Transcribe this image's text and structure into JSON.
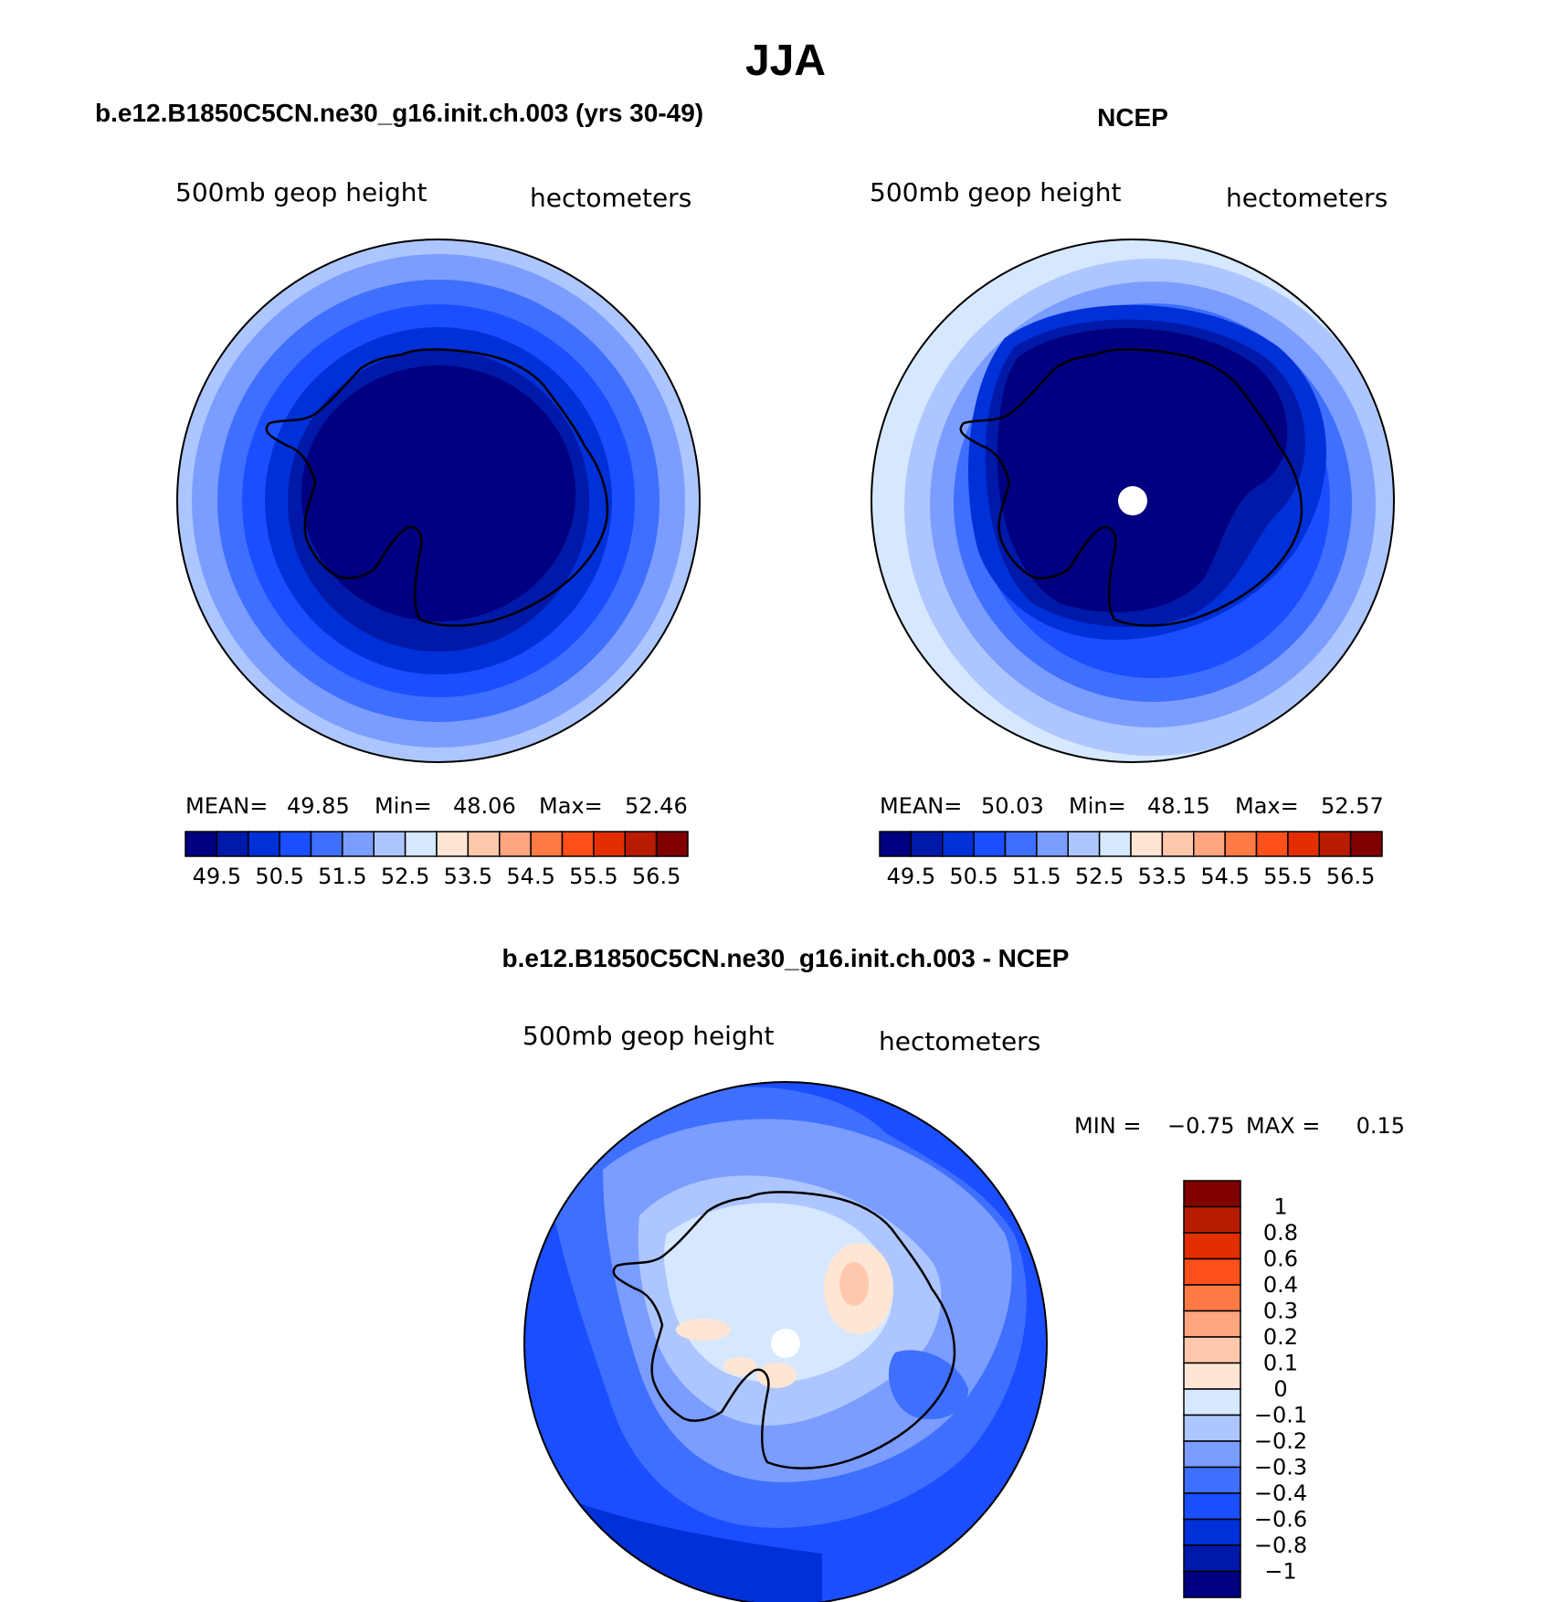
{
  "title": "JJA",
  "palette": [
    "#000080",
    "#0019a8",
    "#0030d8",
    "#1a4eff",
    "#3f6fff",
    "#7b9dff",
    "#adc6ff",
    "#d6e8ff",
    "#ffe6d4",
    "#ffc8ac",
    "#ffa580",
    "#ff7a45",
    "#ff4f1a",
    "#e32e00",
    "#b81c00",
    "#800000"
  ],
  "coast_color": "#000000",
  "panel_a": {
    "title": "b.e12.B1850C5CN.ne30_g16.init.ch.003 (yrs 30-49)",
    "var_label": "500mb geop height",
    "units_label": "hectometers",
    "mean_label": "MEAN=",
    "mean_value": "49.85",
    "min_label": "Min=",
    "min_value": "48.06",
    "max_label": "Max=",
    "max_value": "52.46",
    "colorbar_labels": [
      "49.5",
      "50.5",
      "51.5",
      "52.5",
      "53.5",
      "54.5",
      "55.5",
      "56.5"
    ]
  },
  "panel_b": {
    "title": "NCEP",
    "var_label": "500mb geop height",
    "units_label": "hectometers",
    "mean_label": "MEAN=",
    "mean_value": "50.03",
    "min_label": "Min=",
    "min_value": "48.15",
    "max_label": "Max=",
    "max_value": "52.57",
    "colorbar_labels": [
      "49.5",
      "50.5",
      "51.5",
      "52.5",
      "53.5",
      "54.5",
      "55.5",
      "56.5"
    ]
  },
  "panel_c": {
    "title": "b.e12.B1850C5CN.ne30_g16.init.ch.003 - NCEP",
    "var_label": "500mb geop height",
    "units_label": "hectometers",
    "min_label": "MIN =",
    "min_value": "−0.75",
    "max_label": "MAX =",
    "max_value": "0.15",
    "colorbar_labels": [
      "1",
      "0.8",
      "0.6",
      "0.4",
      "0.3",
      "0.2",
      "0.1",
      "0",
      "−0.1",
      "−0.2",
      "−0.3",
      "−0.4",
      "−0.6",
      "−0.8",
      "−1"
    ],
    "palette": [
      "#800000",
      "#b81c00",
      "#e32e00",
      "#ff4f1a",
      "#ff7a45",
      "#ffa580",
      "#ffc8ac",
      "#ffe6d4",
      "#d6e8ff",
      "#adc6ff",
      "#7b9dff",
      "#3f6fff",
      "#1a4eff",
      "#0030d8",
      "#0019a8",
      "#000080"
    ]
  }
}
